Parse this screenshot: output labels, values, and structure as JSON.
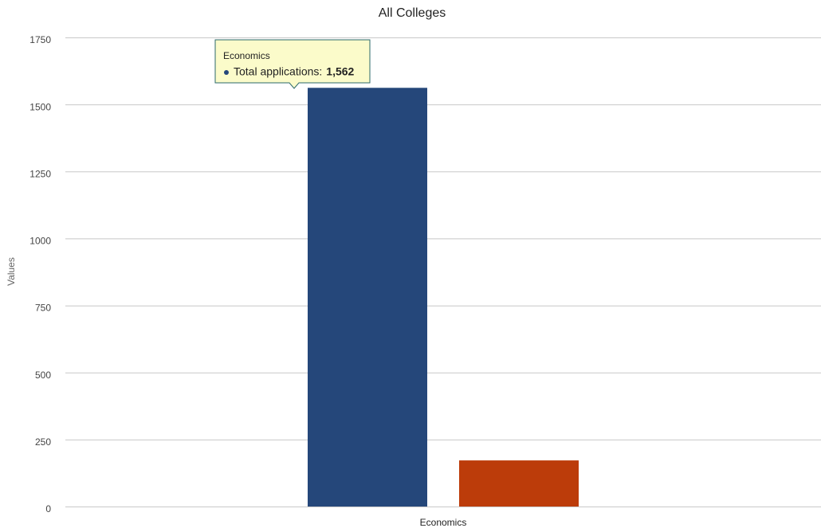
{
  "chart_data": {
    "type": "bar",
    "title": "All Colleges",
    "y_label": "Values",
    "categories": [
      "Economics"
    ],
    "series": [
      {
        "name": "Total applications",
        "color": "#25477a",
        "values": [
          1562
        ],
        "value_labels": [
          "1,562"
        ]
      },
      {
        "color": "#bc3c0a",
        "values": [
          172
        ]
      }
    ],
    "ylim": [
      0,
      1750
    ],
    "yticks": [
      0,
      250,
      500,
      750,
      1000,
      1250,
      1500,
      1750
    ],
    "grid": true,
    "tooltip": {
      "category": 0,
      "series": 0
    }
  }
}
